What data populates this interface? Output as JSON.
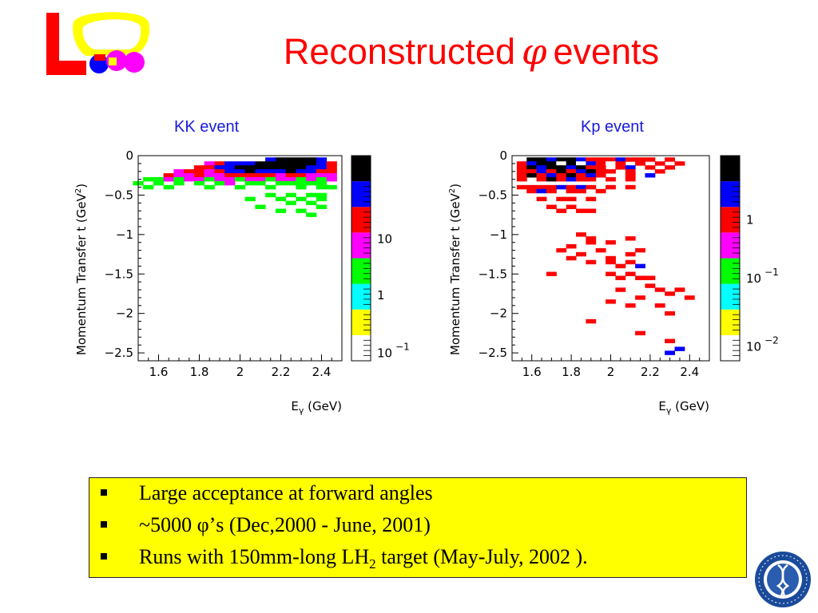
{
  "slide": {
    "title_before": "Reconstructed",
    "title_symbol": "φ",
    "title_after": "events",
    "colors": {
      "title": "#ff0000",
      "subtitle": "#1a1adb",
      "box_background": "#ffff00"
    }
  },
  "bullets": [
    {
      "text": "Large acceptance at forward angles"
    },
    {
      "text_before": "~5000 ",
      "symbol": "φ",
      "text_after": "’s (Dec,2000 - June, 2001)"
    },
    {
      "text_before": "Runs with 150mm-long LH",
      "subscript": "2",
      "text_after": " target (May-July, 2002 )."
    }
  ],
  "chart_data": [
    {
      "type": "heatmap",
      "title": "KK event",
      "xlabel_main": "E",
      "xlabel_sub": "γ",
      "xlabel_unit": " (GeV)",
      "ylabel_main": "Momentum Transfer t (GeV",
      "ylabel_sup": "2",
      "ylabel_end": ")",
      "xlim": [
        1.5,
        2.5
      ],
      "ylim": [
        -2.6,
        0
      ],
      "xticks": [
        "1.6",
        "1.8",
        "2",
        "2.2",
        "2.4"
      ],
      "yticks": [
        "0",
        "−0.5",
        "−1",
        "−1.5",
        "−2",
        "−2.5"
      ],
      "palette": [
        "#ffffff",
        "#ffff00",
        "#00ffff",
        "#00ff00",
        "#ff00ff",
        "#ff0000",
        "#0000ff",
        "#000000"
      ],
      "colorbar_labels": [
        {
          "base": "10",
          "exp": "",
          "level": 4.75
        },
        {
          "base": "1",
          "exp": "",
          "level": 2.55
        },
        {
          "base": "10",
          "exp": "−1",
          "level": 0.3
        }
      ],
      "cells": [
        [
          2.25,
          -0.05,
          7
        ],
        [
          2.3,
          -0.05,
          7
        ],
        [
          2.35,
          -0.05,
          7
        ],
        [
          2.4,
          -0.05,
          6
        ],
        [
          2.2,
          -0.05,
          7
        ],
        [
          2.15,
          -0.05,
          6
        ],
        [
          2.0,
          -0.1,
          6
        ],
        [
          2.05,
          -0.1,
          6
        ],
        [
          2.1,
          -0.1,
          7
        ],
        [
          2.15,
          -0.1,
          7
        ],
        [
          2.2,
          -0.1,
          7
        ],
        [
          2.25,
          -0.1,
          7
        ],
        [
          2.3,
          -0.1,
          7
        ],
        [
          2.35,
          -0.1,
          7
        ],
        [
          2.4,
          -0.1,
          6
        ],
        [
          2.45,
          -0.1,
          5
        ],
        [
          1.9,
          -0.1,
          5
        ],
        [
          1.95,
          -0.1,
          6
        ],
        [
          1.85,
          -0.1,
          4
        ],
        [
          1.8,
          -0.15,
          5
        ],
        [
          1.85,
          -0.15,
          5
        ],
        [
          1.9,
          -0.15,
          6
        ],
        [
          1.95,
          -0.15,
          6
        ],
        [
          2.0,
          -0.15,
          7
        ],
        [
          2.05,
          -0.15,
          7
        ],
        [
          2.1,
          -0.15,
          7
        ],
        [
          2.15,
          -0.15,
          7
        ],
        [
          2.2,
          -0.15,
          7
        ],
        [
          2.25,
          -0.15,
          7
        ],
        [
          2.3,
          -0.15,
          7
        ],
        [
          2.35,
          -0.15,
          6
        ],
        [
          2.4,
          -0.15,
          6
        ],
        [
          2.45,
          -0.15,
          5
        ],
        [
          1.7,
          -0.2,
          4
        ],
        [
          1.75,
          -0.2,
          5
        ],
        [
          1.8,
          -0.2,
          5
        ],
        [
          1.85,
          -0.2,
          4
        ],
        [
          1.9,
          -0.2,
          5
        ],
        [
          1.95,
          -0.2,
          6
        ],
        [
          2.0,
          -0.2,
          6
        ],
        [
          2.05,
          -0.2,
          7
        ],
        [
          2.1,
          -0.2,
          6
        ],
        [
          2.15,
          -0.2,
          6
        ],
        [
          2.2,
          -0.2,
          6
        ],
        [
          2.25,
          -0.2,
          7
        ],
        [
          2.3,
          -0.2,
          6
        ],
        [
          2.35,
          -0.2,
          6
        ],
        [
          2.4,
          -0.2,
          5
        ],
        [
          2.45,
          -0.2,
          5
        ],
        [
          1.65,
          -0.25,
          5
        ],
        [
          1.7,
          -0.25,
          4
        ],
        [
          1.75,
          -0.25,
          4
        ],
        [
          1.8,
          -0.25,
          5
        ],
        [
          1.85,
          -0.25,
          4
        ],
        [
          1.9,
          -0.25,
          4
        ],
        [
          1.95,
          -0.25,
          5
        ],
        [
          2.0,
          -0.25,
          5
        ],
        [
          2.05,
          -0.25,
          5
        ],
        [
          2.1,
          -0.25,
          5
        ],
        [
          2.15,
          -0.25,
          5
        ],
        [
          2.2,
          -0.25,
          4
        ],
        [
          2.25,
          -0.25,
          5
        ],
        [
          2.3,
          -0.25,
          5
        ],
        [
          2.35,
          -0.25,
          4
        ],
        [
          2.4,
          -0.25,
          4
        ],
        [
          2.45,
          -0.25,
          4
        ],
        [
          1.55,
          -0.3,
          3
        ],
        [
          1.6,
          -0.3,
          3
        ],
        [
          1.65,
          -0.3,
          4
        ],
        [
          1.7,
          -0.3,
          3
        ],
        [
          1.75,
          -0.3,
          4
        ],
        [
          1.8,
          -0.3,
          4
        ],
        [
          1.85,
          -0.3,
          3
        ],
        [
          1.9,
          -0.3,
          4
        ],
        [
          1.95,
          -0.3,
          4
        ],
        [
          2.0,
          -0.3,
          3
        ],
        [
          2.05,
          -0.3,
          4
        ],
        [
          2.1,
          -0.3,
          4
        ],
        [
          2.15,
          -0.3,
          3
        ],
        [
          2.2,
          -0.3,
          4
        ],
        [
          2.25,
          -0.3,
          4
        ],
        [
          2.3,
          -0.3,
          3
        ],
        [
          2.35,
          -0.3,
          4
        ],
        [
          2.4,
          -0.3,
          3
        ],
        [
          2.45,
          -0.3,
          4
        ],
        [
          1.5,
          -0.35,
          3
        ],
        [
          1.6,
          -0.35,
          3
        ],
        [
          1.7,
          -0.35,
          3
        ],
        [
          1.8,
          -0.35,
          3
        ],
        [
          1.9,
          -0.35,
          3
        ],
        [
          1.95,
          -0.35,
          4
        ],
        [
          2.05,
          -0.35,
          3
        ],
        [
          2.1,
          -0.35,
          3
        ],
        [
          2.2,
          -0.35,
          3
        ],
        [
          2.25,
          -0.35,
          3
        ],
        [
          2.3,
          -0.35,
          3
        ],
        [
          2.35,
          -0.35,
          3
        ],
        [
          2.4,
          -0.35,
          3
        ],
        [
          1.55,
          -0.4,
          3
        ],
        [
          1.65,
          -0.4,
          3
        ],
        [
          1.85,
          -0.4,
          3
        ],
        [
          2.0,
          -0.4,
          3
        ],
        [
          2.15,
          -0.4,
          3
        ],
        [
          2.3,
          -0.4,
          3
        ],
        [
          2.4,
          -0.4,
          3
        ],
        [
          2.45,
          -0.4,
          3
        ],
        [
          2.15,
          -0.5,
          3
        ],
        [
          2.25,
          -0.5,
          3
        ],
        [
          2.35,
          -0.5,
          3
        ],
        [
          2.4,
          -0.5,
          3
        ],
        [
          2.05,
          -0.55,
          3
        ],
        [
          2.2,
          -0.55,
          3
        ],
        [
          2.3,
          -0.55,
          3
        ],
        [
          2.4,
          -0.55,
          3
        ],
        [
          2.25,
          -0.6,
          3
        ],
        [
          2.35,
          -0.6,
          3
        ],
        [
          2.1,
          -0.65,
          3
        ],
        [
          2.2,
          -0.7,
          3
        ],
        [
          2.3,
          -0.7,
          3
        ],
        [
          2.4,
          -0.65,
          3
        ],
        [
          2.35,
          -0.75,
          3
        ]
      ]
    },
    {
      "type": "heatmap",
      "title": "Kp event",
      "xlabel_main": "E",
      "xlabel_sub": "γ",
      "xlabel_unit": " (GeV)",
      "ylabel_main": "Momentum Transfer t (GeV",
      "ylabel_sup": "2",
      "ylabel_end": ")",
      "xlim": [
        1.5,
        2.5
      ],
      "ylim": [
        -2.6,
        0
      ],
      "xticks": [
        "1.6",
        "1.8",
        "2",
        "2.2",
        "2.4"
      ],
      "yticks": [
        "0",
        "−0.5",
        "−1",
        "−1.5",
        "−2",
        "−2.5"
      ],
      "palette": [
        "#ffffff",
        "#ffff00",
        "#00ffff",
        "#00ff00",
        "#ff00ff",
        "#ff0000",
        "#0000ff",
        "#000000"
      ],
      "colorbar_labels": [
        {
          "base": "1",
          "exp": "",
          "level": 5.5
        },
        {
          "base": "10",
          "exp": "−1",
          "level": 3.2
        },
        {
          "base": "10",
          "exp": "−2",
          "level": 0.55
        }
      ],
      "cells": [
        [
          1.6,
          -0.05,
          7
        ],
        [
          1.65,
          -0.05,
          7
        ],
        [
          1.7,
          -0.05,
          6
        ],
        [
          1.75,
          -0.05,
          7
        ],
        [
          1.8,
          -0.05,
          7
        ],
        [
          1.85,
          -0.05,
          6
        ],
        [
          1.9,
          -0.05,
          5
        ],
        [
          1.95,
          -0.05,
          5
        ],
        [
          2.0,
          -0.05,
          5
        ],
        [
          2.05,
          -0.05,
          6
        ],
        [
          2.1,
          -0.05,
          5
        ],
        [
          2.15,
          -0.05,
          5
        ],
        [
          2.2,
          -0.05,
          5
        ],
        [
          2.3,
          -0.05,
          5
        ],
        [
          1.55,
          -0.1,
          5
        ],
        [
          1.6,
          -0.1,
          6
        ],
        [
          1.65,
          -0.1,
          7
        ],
        [
          1.7,
          -0.1,
          7
        ],
        [
          1.75,
          -0.1,
          0
        ],
        [
          1.8,
          -0.1,
          7
        ],
        [
          1.85,
          -0.1,
          0
        ],
        [
          1.9,
          -0.1,
          6
        ],
        [
          1.95,
          -0.1,
          5
        ],
        [
          2.0,
          -0.1,
          0
        ],
        [
          2.05,
          -0.1,
          5
        ],
        [
          2.15,
          -0.1,
          5
        ],
        [
          2.25,
          -0.1,
          5
        ],
        [
          2.35,
          -0.1,
          5
        ],
        [
          1.55,
          -0.15,
          5
        ],
        [
          1.6,
          -0.15,
          7
        ],
        [
          1.65,
          -0.15,
          6
        ],
        [
          1.7,
          -0.15,
          7
        ],
        [
          1.75,
          -0.15,
          7
        ],
        [
          1.8,
          -0.15,
          6
        ],
        [
          1.85,
          -0.15,
          7
        ],
        [
          1.9,
          -0.15,
          5
        ],
        [
          1.95,
          -0.15,
          5
        ],
        [
          2.05,
          -0.15,
          5
        ],
        [
          2.1,
          -0.15,
          6
        ],
        [
          2.2,
          -0.15,
          5
        ],
        [
          2.3,
          -0.15,
          5
        ],
        [
          1.55,
          -0.2,
          5
        ],
        [
          1.6,
          -0.2,
          5
        ],
        [
          1.65,
          -0.2,
          6
        ],
        [
          1.7,
          -0.2,
          5
        ],
        [
          1.75,
          -0.2,
          7
        ],
        [
          1.8,
          -0.2,
          5
        ],
        [
          1.85,
          -0.2,
          6
        ],
        [
          1.9,
          -0.2,
          7
        ],
        [
          1.95,
          -0.2,
          5
        ],
        [
          2.0,
          -0.2,
          5
        ],
        [
          2.1,
          -0.2,
          5
        ],
        [
          2.25,
          -0.2,
          5
        ],
        [
          1.55,
          -0.25,
          5
        ],
        [
          1.6,
          -0.25,
          7
        ],
        [
          1.65,
          -0.25,
          5
        ],
        [
          1.7,
          -0.25,
          6
        ],
        [
          1.75,
          -0.25,
          5
        ],
        [
          1.8,
          -0.25,
          7
        ],
        [
          1.85,
          -0.25,
          5
        ],
        [
          1.9,
          -0.25,
          6
        ],
        [
          1.95,
          -0.25,
          5
        ],
        [
          2.1,
          -0.25,
          5
        ],
        [
          2.2,
          -0.25,
          6
        ],
        [
          1.55,
          -0.3,
          5
        ],
        [
          1.65,
          -0.3,
          5
        ],
        [
          1.7,
          -0.3,
          7
        ],
        [
          1.75,
          -0.3,
          5
        ],
        [
          1.8,
          -0.3,
          6
        ],
        [
          1.85,
          -0.3,
          5
        ],
        [
          1.9,
          -0.3,
          5
        ],
        [
          2.0,
          -0.3,
          5
        ],
        [
          2.1,
          -0.3,
          5
        ],
        [
          1.55,
          -0.4,
          5
        ],
        [
          1.6,
          -0.4,
          5
        ],
        [
          1.65,
          -0.4,
          5
        ],
        [
          1.7,
          -0.4,
          5
        ],
        [
          1.75,
          -0.4,
          6
        ],
        [
          1.8,
          -0.4,
          5
        ],
        [
          1.85,
          -0.4,
          6
        ],
        [
          1.9,
          -0.4,
          5
        ],
        [
          2.0,
          -0.4,
          5
        ],
        [
          2.1,
          -0.4,
          5
        ],
        [
          1.6,
          -0.45,
          5
        ],
        [
          1.65,
          -0.45,
          6
        ],
        [
          1.7,
          -0.45,
          5
        ],
        [
          1.8,
          -0.45,
          5
        ],
        [
          1.85,
          -0.45,
          5
        ],
        [
          1.95,
          -0.45,
          5
        ],
        [
          1.65,
          -0.55,
          5
        ],
        [
          1.75,
          -0.55,
          5
        ],
        [
          1.8,
          -0.55,
          5
        ],
        [
          1.9,
          -0.55,
          5
        ],
        [
          1.7,
          -0.65,
          5
        ],
        [
          1.8,
          -0.65,
          5
        ],
        [
          1.85,
          -0.7,
          5
        ],
        [
          1.9,
          -0.7,
          5
        ],
        [
          1.75,
          -0.7,
          5
        ],
        [
          1.85,
          -1.0,
          5
        ],
        [
          1.9,
          -1.05,
          5
        ],
        [
          1.8,
          -1.15,
          5
        ],
        [
          1.9,
          -1.1,
          5
        ],
        [
          2.0,
          -1.1,
          5
        ],
        [
          2.1,
          -1.05,
          5
        ],
        [
          1.75,
          -1.2,
          5
        ],
        [
          1.85,
          -1.25,
          5
        ],
        [
          1.95,
          -1.2,
          5
        ],
        [
          2.0,
          -1.3,
          5
        ],
        [
          2.1,
          -1.25,
          5
        ],
        [
          2.15,
          -1.2,
          5
        ],
        [
          1.8,
          -1.3,
          5
        ],
        [
          1.9,
          -1.35,
          5
        ],
        [
          2.0,
          -1.35,
          5
        ],
        [
          2.05,
          -1.4,
          5
        ],
        [
          2.1,
          -1.35,
          5
        ],
        [
          2.15,
          -1.4,
          6
        ],
        [
          2.0,
          -1.5,
          5
        ],
        [
          2.05,
          -1.55,
          5
        ],
        [
          2.1,
          -1.5,
          5
        ],
        [
          2.15,
          -1.55,
          5
        ],
        [
          2.2,
          -1.55,
          5
        ],
        [
          1.7,
          -1.5,
          5
        ],
        [
          2.05,
          -1.7,
          5
        ],
        [
          2.2,
          -1.65,
          5
        ],
        [
          2.25,
          -1.7,
          5
        ],
        [
          2.3,
          -1.75,
          5
        ],
        [
          2.35,
          -1.7,
          5
        ],
        [
          2.4,
          -1.8,
          5
        ],
        [
          2.0,
          -1.85,
          5
        ],
        [
          2.1,
          -1.9,
          5
        ],
        [
          2.15,
          -1.8,
          5
        ],
        [
          2.25,
          -1.9,
          5
        ],
        [
          2.3,
          -2.0,
          5
        ],
        [
          1.9,
          -2.1,
          5
        ],
        [
          2.15,
          -2.25,
          5
        ],
        [
          2.3,
          -2.35,
          5
        ],
        [
          2.35,
          -2.45,
          6
        ],
        [
          2.3,
          -2.5,
          6
        ]
      ]
    }
  ]
}
